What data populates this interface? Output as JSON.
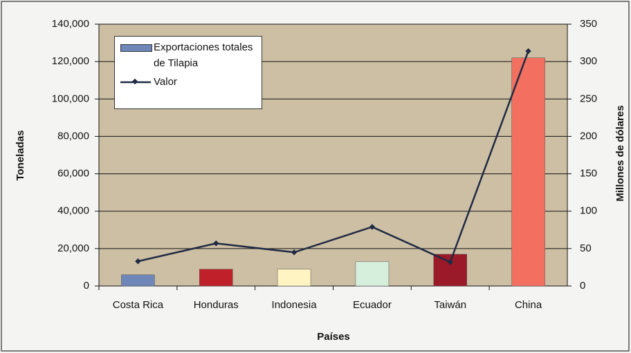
{
  "chart_data": {
    "type": "bar",
    "xlabel": "Países",
    "ylabel": "Toneladas",
    "y2label": "Millones de dólares",
    "categories": [
      "Costa Rica",
      "Honduras",
      "Indonesia",
      "Ecuador",
      "Taiwán",
      "China"
    ],
    "series": [
      {
        "name": "Exportaciones totales de Tilapia",
        "type": "bar",
        "color": "#6f86b8",
        "colors": [
          "#6f86b8",
          "#c0202a",
          "#fff4c2",
          "#d6efdc",
          "#9b1a2a",
          "#f37060"
        ],
        "values": [
          6000,
          9000,
          9000,
          13000,
          17000,
          122000
        ]
      },
      {
        "name": "Valor",
        "type": "line",
        "axis": "y2",
        "color": "#1f2a44",
        "values": [
          33,
          57,
          45,
          79,
          32,
          314
        ]
      }
    ],
    "ylim": [
      0,
      140000
    ],
    "yticks": [
      0,
      {
        "value": 20000,
        "label": "20,000"
      },
      {
        "value": 40000,
        "label": "40,000"
      },
      {
        "value": 60000,
        "label": "60,000"
      },
      {
        "value": 80000,
        "label": "80,000"
      },
      {
        "value": 100000,
        "label": "100,000"
      },
      {
        "value": 120000,
        "label": "120,000"
      },
      {
        "value": 140000,
        "label": "140,000"
      }
    ],
    "y2lim": [
      0,
      350
    ],
    "y2ticks": [
      0,
      50,
      100,
      150,
      200,
      250,
      300,
      350
    ],
    "grid": true,
    "legend": "upper left"
  }
}
